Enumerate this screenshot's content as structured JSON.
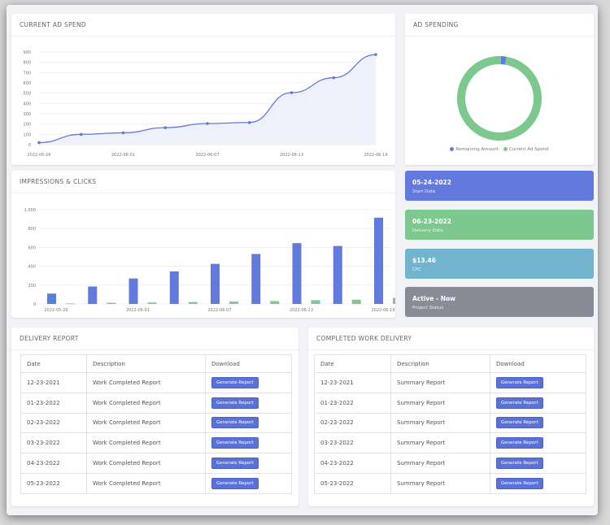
{
  "colors": {
    "blue": "#6279dd",
    "green": "#7cc88e",
    "teal": "#72b4cd",
    "gray": "#898c96",
    "area_fill": "#eef0fa"
  },
  "current_ad_spend": {
    "title": "CURRENT AD SPEND",
    "chart_data": {
      "type": "line",
      "x": [
        "2022-05-26",
        "2022-05-29",
        "2022-06-01",
        "2022-06-04",
        "2022-06-07",
        "2022-06-10",
        "2022-06-13",
        "2022-06-16",
        "2022-06-19"
      ],
      "y": [
        20,
        100,
        115,
        165,
        205,
        215,
        505,
        650,
        875
      ],
      "x_tick_labels": [
        "2022-05-26",
        "2022-06-01",
        "2022-06-07",
        "2022-06-13",
        "2022-06-19"
      ],
      "y_ticks": [
        "0",
        "100",
        "200",
        "300",
        "400",
        "500",
        "600",
        "700",
        "800",
        "900"
      ],
      "ylim": [
        0,
        900
      ],
      "grid": true
    }
  },
  "ad_spending": {
    "title": "AD SPENDING",
    "chart_data": {
      "type": "pie",
      "labels": [
        "Remaining Amount",
        "Current Ad Spend"
      ],
      "values": [
        2,
        98
      ],
      "colors": [
        "#6279dd",
        "#7cc88e"
      ],
      "legend": "bottom"
    }
  },
  "impressions_clicks": {
    "title": "IMPRESSIONS & CLICKS",
    "chart_data": {
      "type": "bar",
      "categories": [
        "2022-05-26",
        "2022-05-29",
        "2022-06-01",
        "2022-06-04",
        "2022-06-07",
        "2022-06-10",
        "2022-06-13",
        "2022-06-16",
        "2022-06-19"
      ],
      "x_tick_labels": [
        "2022-05-26",
        "2022-06-01",
        "2022-06-07",
        "2022-06-13",
        "2022-06-19"
      ],
      "series": [
        {
          "values": [
            110,
            185,
            270,
            345,
            425,
            530,
            645,
            615,
            915
          ],
          "color": "#6279dd"
        },
        {
          "values": [
            5,
            12,
            15,
            20,
            25,
            30,
            40,
            45,
            65
          ],
          "color": "#7cc88e"
        }
      ],
      "y_ticks": [
        "0",
        "200",
        "400",
        "600",
        "800",
        "1,000"
      ],
      "ylim": [
        0,
        1000
      ],
      "grid": true
    }
  },
  "stats": [
    {
      "value": "05-24-2022",
      "label": "Start Date",
      "color": "#6279dd"
    },
    {
      "value": "06-23-2022",
      "label": "Delivery Date",
      "color": "#7cc88e"
    },
    {
      "value": "$13.46",
      "label": "CPC",
      "color": "#72b4cd"
    },
    {
      "value": "Active - Now",
      "label": "Project Status",
      "color": "#898c96"
    }
  ],
  "delivery_report": {
    "title": "DELIVERY REPORT",
    "headers": [
      "Date",
      "Description",
      "Download"
    ],
    "button_label": "Generate Report",
    "rows": [
      {
        "date": "12-23-2021",
        "description": "Work Completed Report"
      },
      {
        "date": "01-23-2022",
        "description": "Work Completed Report"
      },
      {
        "date": "02-23-2022",
        "description": "Work Completed Report"
      },
      {
        "date": "03-23-2022",
        "description": "Work Completed Report"
      },
      {
        "date": "04-23-2022",
        "description": "Work Completed Report"
      },
      {
        "date": "05-23-2022",
        "description": "Work Completed Report"
      }
    ]
  },
  "completed_work_delivery": {
    "title": "COMPLETED WORK DELIVERY",
    "headers": [
      "Date",
      "Description",
      "Download"
    ],
    "button_label": "Generate Report",
    "rows": [
      {
        "date": "12-23-2021",
        "description": "Summary Report"
      },
      {
        "date": "01-23-2022",
        "description": "Summary Report"
      },
      {
        "date": "02-23-2022",
        "description": "Summary Report"
      },
      {
        "date": "03-23-2022",
        "description": "Summary Report"
      },
      {
        "date": "04-23-2022",
        "description": "Summary Report"
      },
      {
        "date": "05-23-2022",
        "description": "Summary Report"
      }
    ]
  }
}
